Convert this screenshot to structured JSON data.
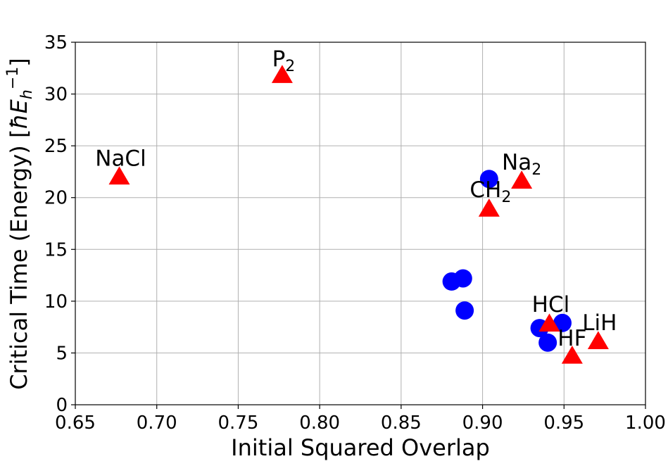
{
  "chart_data": {
    "type": "scatter",
    "title": "",
    "xlabel": "Initial Squared Overlap",
    "ylabel": {
      "main": "Critical Time (Energy) [",
      "hbar": "ħ",
      "E": "E",
      "sub": "h",
      "sup": "−1",
      "close": "]"
    },
    "xlim": [
      0.65,
      1.0
    ],
    "ylim": [
      0,
      35
    ],
    "x_ticks": [
      "0.65",
      "0.70",
      "0.75",
      "0.80",
      "0.85",
      "0.90",
      "0.95",
      "1.00"
    ],
    "y_ticks": [
      "0",
      "5",
      "10",
      "15",
      "20",
      "25",
      "30",
      "35"
    ],
    "grid": true,
    "colors": {
      "circle": "#0000ff",
      "triangle": "#ff0000"
    },
    "series": [
      {
        "marker": "circle",
        "points": [
          {
            "x": 0.881,
            "y": 11.9
          },
          {
            "x": 0.888,
            "y": 12.2
          },
          {
            "x": 0.889,
            "y": 9.1
          },
          {
            "x": 0.904,
            "y": 21.8
          },
          {
            "x": 0.935,
            "y": 7.4
          },
          {
            "x": 0.94,
            "y": 6.0
          },
          {
            "x": 0.949,
            "y": 7.9
          }
        ]
      },
      {
        "marker": "triangle",
        "points": [
          {
            "x": 0.677,
            "y": 22.0,
            "label": {
              "base": "NaCl",
              "sub": ""
            }
          },
          {
            "x": 0.777,
            "y": 31.8,
            "label": {
              "base": "P",
              "sub": "2"
            }
          },
          {
            "x": 0.904,
            "y": 18.9,
            "label": {
              "base": "CH",
              "sub": "2"
            }
          },
          {
            "x": 0.924,
            "y": 21.6,
            "label": {
              "base": "Na",
              "sub": "2"
            }
          },
          {
            "x": 0.941,
            "y": 7.8,
            "label": {
              "base": "HCl",
              "sub": ""
            }
          },
          {
            "x": 0.955,
            "y": 4.7,
            "label": {
              "base": "HF",
              "sub": ""
            }
          },
          {
            "x": 0.971,
            "y": 6.1,
            "label": {
              "base": "LiH",
              "sub": ""
            }
          }
        ]
      }
    ]
  }
}
